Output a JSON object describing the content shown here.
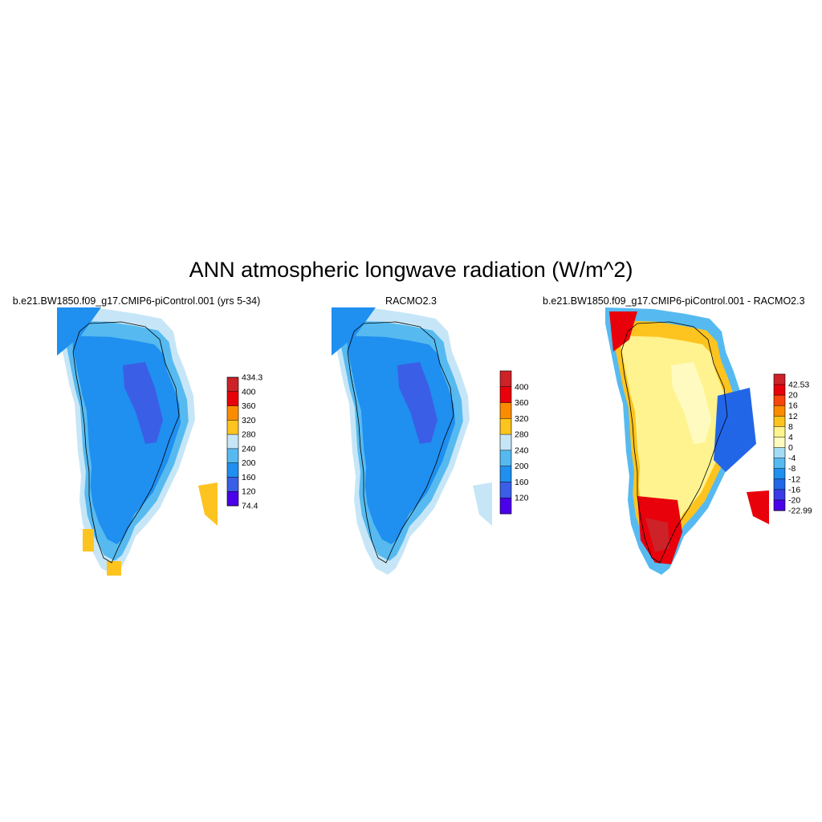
{
  "title": "ANN atmospheric longwave radiation (W/m^2)",
  "panels": [
    {
      "id": "model",
      "title": "b.e21.BW1850.f09_g17.CMIP6-piControl.001 (yrs 5-34)",
      "colorbar": {
        "labels": [
          "434.3",
          "400",
          "360",
          "320",
          "280",
          "240",
          "200",
          "160",
          "120",
          "74.4"
        ],
        "colors": [
          "#cc2228",
          "#e8000b",
          "#fb8c00",
          "#fdc41f",
          "#c6e6f7",
          "#56baf0",
          "#1f8ff0",
          "#3a5fe6",
          "#4b00ea"
        ]
      },
      "zones": {
        "bg": "#1f8ff0",
        "mid": "#56baf0",
        "edge": "#c6e6f7",
        "core": "#3a5fe6",
        "warm": "#fdc41f"
      }
    },
    {
      "id": "obs",
      "title": "RACMO2.3",
      "colorbar": {
        "labels": [
          "400",
          "360",
          "320",
          "280",
          "240",
          "200",
          "160",
          "120"
        ],
        "colors": [
          "#cc2228",
          "#e8000b",
          "#fb8c00",
          "#fdc41f",
          "#c6e6f7",
          "#56baf0",
          "#1f8ff0",
          "#3a5fe6",
          "#4b00ea"
        ]
      },
      "zones": {
        "bg": "#1f8ff0",
        "mid": "#56baf0",
        "edge": "#c6e6f7",
        "core": "#3a5fe6",
        "warm": "#c6e6f7"
      }
    },
    {
      "id": "diff",
      "title": "b.e21.BW1850.f09_g17.CMIP6-piControl.001 - RACMO2.3",
      "colorbar": {
        "labels": [
          "42.53",
          "20",
          "16",
          "12",
          "8",
          "4",
          "0",
          "-4",
          "-8",
          "-12",
          "-16",
          "-20",
          "-22.99"
        ],
        "colors": [
          "#cc2228",
          "#e8000b",
          "#f8450d",
          "#fb8c00",
          "#fdc41f",
          "#fff38f",
          "#fffbc0",
          "#a5dcf5",
          "#56baf0",
          "#1f8ff0",
          "#2266e8",
          "#3a3ae6",
          "#4b00ea"
        ]
      },
      "zones": {
        "bg": "#fff38f",
        "mid": "#fdc41f",
        "edge": "#56baf0",
        "core": "#fffbc0",
        "south": "#e8000b",
        "south2": "#cc2228",
        "east": "#2266e8"
      }
    }
  ]
}
